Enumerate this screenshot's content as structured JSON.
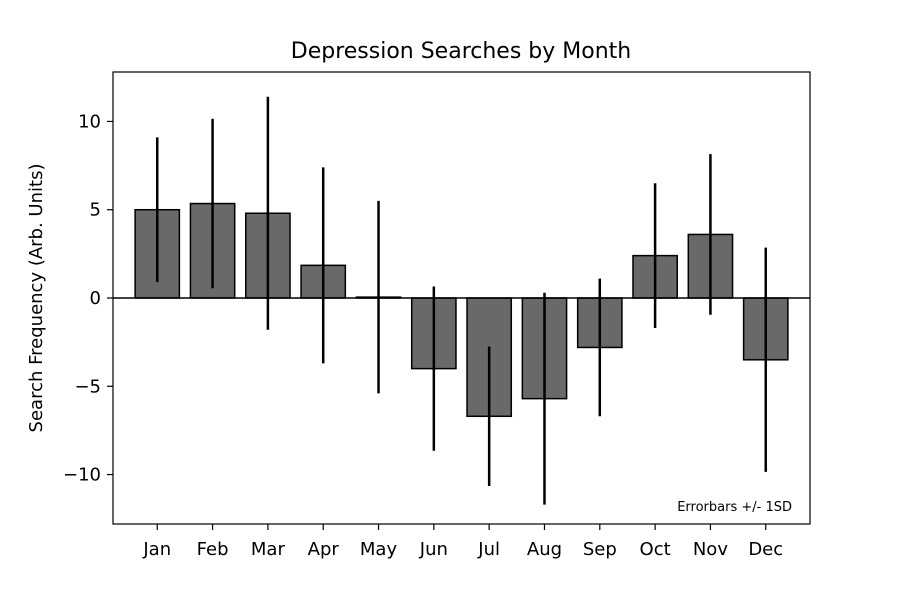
{
  "chart_data": {
    "type": "bar",
    "title": "Depression Searches by Month",
    "xlabel": "",
    "ylabel": "Search Frequency (Arb. Units)",
    "annotation": "Errorbars +/- 1SD",
    "categories": [
      "Jan",
      "Feb",
      "Mar",
      "Apr",
      "May",
      "Jun",
      "Jul",
      "Aug",
      "Sep",
      "Oct",
      "Nov",
      "Dec"
    ],
    "values": [
      5.0,
      5.35,
      4.8,
      1.85,
      0.05,
      -4.0,
      -6.7,
      -5.7,
      -2.8,
      2.4,
      3.6,
      -3.5
    ],
    "errors": [
      4.1,
      4.8,
      6.6,
      5.55,
      5.45,
      4.65,
      3.95,
      6.0,
      3.9,
      4.1,
      4.55,
      6.35
    ],
    "ylim": [
      -12.8,
      12.8
    ],
    "yticks": [
      -10,
      -5,
      0,
      5,
      10
    ],
    "ytick_labels": [
      "−10",
      "−5",
      "0",
      "5",
      "10"
    ],
    "grid": false,
    "colors": {
      "bar": "#696969",
      "edge": "#000000",
      "errorbar": "#000000"
    }
  }
}
